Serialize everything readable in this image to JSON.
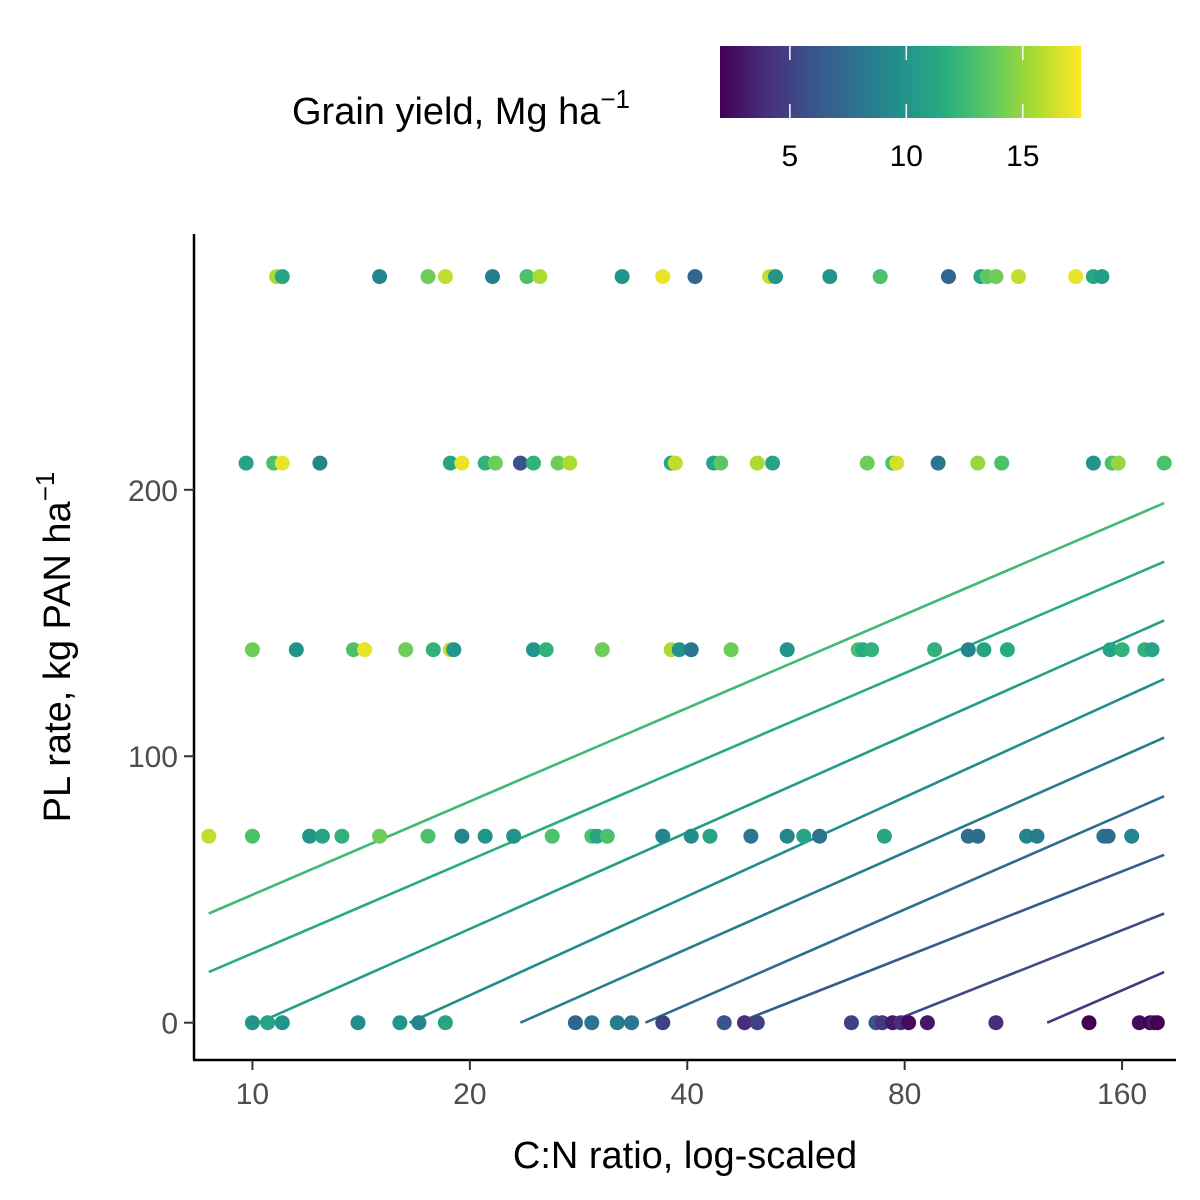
{
  "chart_data": {
    "type": "scatter",
    "xlabel": "C:N ratio, log-scaled",
    "ylabel": "PL rate, kg PAN ha",
    "ylabel_sup": "−1",
    "x_scale": "log",
    "xlim": [
      8.3,
      190
    ],
    "ylim": [
      -14,
      296
    ],
    "x_ticks": [
      10,
      20,
      40,
      80,
      160
    ],
    "x_tick_labels": [
      "10",
      "20",
      "40",
      "80",
      "160"
    ],
    "y_ticks": [
      0,
      100,
      200
    ],
    "y_tick_labels": [
      "0",
      "100",
      "200"
    ],
    "grid": false,
    "colorbar": {
      "title": "Grain yield, Mg ha",
      "title_sup": "−1",
      "placement": "top",
      "range": [
        2,
        17.5
      ],
      "ticks": [
        5,
        10,
        15
      ],
      "tick_labels": [
        "5",
        "10",
        "15"
      ],
      "palette": "viridis"
    },
    "points": [
      [
        10.8,
        280,
        15.5
      ],
      [
        11.0,
        280,
        11.0
      ],
      [
        15.0,
        280,
        9.0
      ],
      [
        17.5,
        280,
        14.0
      ],
      [
        18.5,
        280,
        16.0
      ],
      [
        21.5,
        280,
        8.5
      ],
      [
        24.0,
        280,
        13.0
      ],
      [
        25.0,
        280,
        15.5
      ],
      [
        32.5,
        280,
        10.0
      ],
      [
        37.0,
        280,
        17.0
      ],
      [
        41.0,
        280,
        7.0
      ],
      [
        52.0,
        280,
        16.0
      ],
      [
        53.0,
        280,
        10.0
      ],
      [
        63.0,
        280,
        10.0
      ],
      [
        74.0,
        280,
        13.0
      ],
      [
        92.0,
        280,
        7.0
      ],
      [
        102.0,
        280,
        11.0
      ],
      [
        104.0,
        280,
        13.5
      ],
      [
        107.0,
        280,
        14.0
      ],
      [
        115.0,
        280,
        16.0
      ],
      [
        138.0,
        280,
        17.0
      ],
      [
        146.0,
        280,
        11.0
      ],
      [
        150.0,
        280,
        10.5
      ],
      [
        9.8,
        210,
        11.0
      ],
      [
        10.7,
        210,
        13.0
      ],
      [
        11.0,
        210,
        17.0
      ],
      [
        12.4,
        210,
        9.0
      ],
      [
        18.8,
        210,
        11.0
      ],
      [
        19.5,
        210,
        17.0
      ],
      [
        21.0,
        210,
        12.0
      ],
      [
        21.7,
        210,
        14.0
      ],
      [
        23.5,
        210,
        6.0
      ],
      [
        24.5,
        210,
        12.0
      ],
      [
        26.5,
        210,
        14.0
      ],
      [
        27.5,
        210,
        15.5
      ],
      [
        38.0,
        210,
        11.0
      ],
      [
        38.5,
        210,
        16.0
      ],
      [
        43.5,
        210,
        11.0
      ],
      [
        44.5,
        210,
        13.5
      ],
      [
        50.0,
        210,
        15.5
      ],
      [
        52.5,
        210,
        11.0
      ],
      [
        71.0,
        210,
        14.0
      ],
      [
        77.0,
        210,
        13.0
      ],
      [
        78.0,
        210,
        16.5
      ],
      [
        89.0,
        210,
        8.0
      ],
      [
        101.0,
        210,
        15.0
      ],
      [
        109.0,
        210,
        13.0
      ],
      [
        146.0,
        210,
        10.0
      ],
      [
        155.0,
        210,
        13.0
      ],
      [
        158.0,
        210,
        15.0
      ],
      [
        183.0,
        210,
        13.0
      ],
      [
        10.0,
        140,
        14.0
      ],
      [
        11.5,
        140,
        10.0
      ],
      [
        13.8,
        140,
        13.0
      ],
      [
        14.3,
        140,
        17.0
      ],
      [
        16.3,
        140,
        14.0
      ],
      [
        17.8,
        140,
        12.0
      ],
      [
        18.8,
        140,
        16.0
      ],
      [
        19.0,
        140,
        10.0
      ],
      [
        24.5,
        140,
        10.0
      ],
      [
        25.5,
        140,
        12.0
      ],
      [
        30.5,
        140,
        14.0
      ],
      [
        38.0,
        140,
        15.5
      ],
      [
        39.0,
        140,
        10.0
      ],
      [
        40.5,
        140,
        8.0
      ],
      [
        46.0,
        140,
        14.0
      ],
      [
        55.0,
        140,
        10.0
      ],
      [
        69.0,
        140,
        13.0
      ],
      [
        70.0,
        140,
        11.5
      ],
      [
        72.0,
        140,
        12.0
      ],
      [
        88.0,
        140,
        12.0
      ],
      [
        98.0,
        140,
        9.0
      ],
      [
        103.0,
        140,
        11.0
      ],
      [
        111.0,
        140,
        11.5
      ],
      [
        154.0,
        140,
        11.0
      ],
      [
        160.0,
        140,
        12.0
      ],
      [
        172.0,
        140,
        12.0
      ],
      [
        176.0,
        140,
        11.0
      ],
      [
        8.7,
        70,
        16.0
      ],
      [
        10.0,
        70,
        13.0
      ],
      [
        12.0,
        70,
        10.0
      ],
      [
        12.5,
        70,
        11.0
      ],
      [
        13.3,
        70,
        12.0
      ],
      [
        15.0,
        70,
        14.0
      ],
      [
        17.5,
        70,
        13.0
      ],
      [
        19.5,
        70,
        9.0
      ],
      [
        21.0,
        70,
        10.0
      ],
      [
        23.0,
        70,
        10.0
      ],
      [
        26.0,
        70,
        13.0
      ],
      [
        29.5,
        70,
        13.0
      ],
      [
        30.0,
        70,
        11.0
      ],
      [
        31.0,
        70,
        13.0
      ],
      [
        37.0,
        70,
        9.0
      ],
      [
        40.5,
        70,
        9.5
      ],
      [
        43.0,
        70,
        11.0
      ],
      [
        49.0,
        70,
        8.0
      ],
      [
        55.0,
        70,
        9.0
      ],
      [
        58.0,
        70,
        11.0
      ],
      [
        61.0,
        70,
        8.0
      ],
      [
        75.0,
        70,
        11.0
      ],
      [
        98.0,
        70,
        7.5
      ],
      [
        101.0,
        70,
        7.5
      ],
      [
        118.0,
        70,
        9.0
      ],
      [
        122.0,
        70,
        8.5
      ],
      [
        151.0,
        70,
        8.0
      ],
      [
        153.0,
        70,
        7.5
      ],
      [
        165.0,
        70,
        9.0
      ],
      [
        10.0,
        0,
        10.0
      ],
      [
        10.5,
        0,
        11.0
      ],
      [
        11.0,
        0,
        10.0
      ],
      [
        14.0,
        0,
        9.5
      ],
      [
        16.0,
        0,
        10.0
      ],
      [
        17.0,
        0,
        9.0
      ],
      [
        18.5,
        0,
        11.0
      ],
      [
        28.0,
        0,
        7.0
      ],
      [
        29.5,
        0,
        8.0
      ],
      [
        32.0,
        0,
        8.5
      ],
      [
        33.5,
        0,
        8.0
      ],
      [
        37.0,
        0,
        5.0
      ],
      [
        45.0,
        0,
        6.0
      ],
      [
        48.0,
        0,
        4.0
      ],
      [
        50.0,
        0,
        5.0
      ],
      [
        67.5,
        0,
        5.0
      ],
      [
        73.0,
        0,
        6.0
      ],
      [
        74.5,
        0,
        4.5
      ],
      [
        77.0,
        0,
        3.0
      ],
      [
        79.0,
        0,
        4.0
      ],
      [
        81.0,
        0,
        2.5
      ],
      [
        86.0,
        0,
        3.0
      ],
      [
        107.0,
        0,
        4.0
      ],
      [
        144.0,
        0,
        2.0
      ],
      [
        169.0,
        0,
        2.5
      ],
      [
        175.0,
        0,
        2.0
      ],
      [
        177.0,
        0,
        3.0
      ],
      [
        179.0,
        0,
        2.0
      ]
    ],
    "contour_lines": [
      {
        "level": 12.5,
        "x_start": 8.7,
        "y_start": 41,
        "x_end": 183,
        "y_end": 195
      },
      {
        "level": 11.5,
        "x_start": 8.7,
        "y_start": 19,
        "x_end": 183,
        "y_end": 173
      },
      {
        "level": 10.5,
        "x_start": 10.2,
        "y_start": 0,
        "x_end": 183,
        "y_end": 151
      },
      {
        "level": 9.5,
        "x_start": 16.5,
        "y_start": 0,
        "x_end": 183,
        "y_end": 129
      },
      {
        "level": 8.5,
        "x_start": 23.5,
        "y_start": 0,
        "x_end": 183,
        "y_end": 107
      },
      {
        "level": 7.5,
        "x_start": 35.0,
        "y_start": 0,
        "x_end": 183,
        "y_end": 85
      },
      {
        "level": 6.5,
        "x_start": 47.0,
        "y_start": 0,
        "x_end": 183,
        "y_end": 63
      },
      {
        "level": 5.5,
        "x_start": 76.0,
        "y_start": 0,
        "x_end": 183,
        "y_end": 41
      },
      {
        "level": 4.5,
        "x_start": 126.0,
        "y_start": 0,
        "x_end": 183,
        "y_end": 19
      }
    ]
  }
}
